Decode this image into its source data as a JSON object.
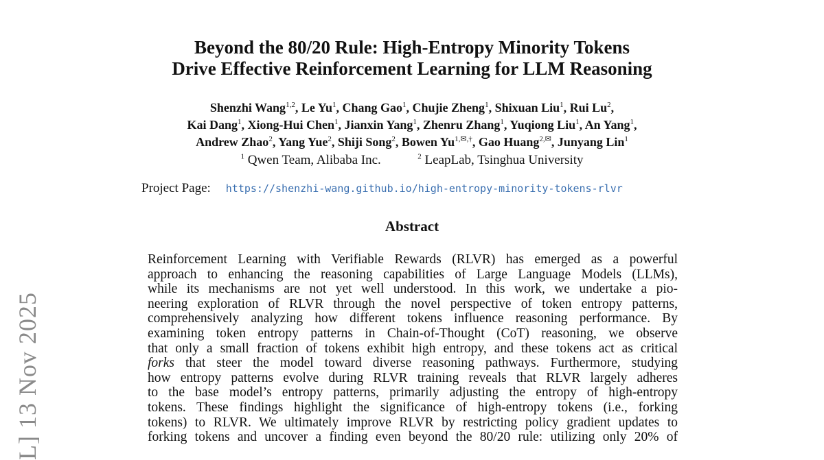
{
  "arxiv_stamp": "L]   13 Nov 2025",
  "title": [
    "Beyond the 80/20 Rule: High-Entropy Minority Tokens",
    "Drive Effective Reinforcement Learning for LLM Reasoning"
  ],
  "authors": [
    [
      [
        "Shenzhi Wang",
        "1,2"
      ],
      [
        "Le Yu",
        "1"
      ],
      [
        "Chang Gao",
        "1"
      ],
      [
        "Chujie Zheng",
        "1"
      ],
      [
        "Shixuan Liu",
        "1"
      ],
      [
        "Rui Lu",
        "2"
      ]
    ],
    [
      [
        "Kai Dang",
        "1"
      ],
      [
        "Xiong-Hui Chen",
        "1"
      ],
      [
        "Jianxin Yang",
        "1"
      ],
      [
        "Zhenru Zhang",
        "1"
      ],
      [
        "Yuqiong Liu",
        "1"
      ],
      [
        "An Yang",
        "1"
      ]
    ],
    [
      [
        "Andrew Zhao",
        "2"
      ],
      [
        "Yang Yue",
        "2"
      ],
      [
        "Shiji Song",
        "2"
      ],
      [
        "Bowen Yu",
        "1,✉,†"
      ],
      [
        "Gao Huang",
        "2,✉"
      ],
      [
        "Junyang Lin",
        "1"
      ]
    ]
  ],
  "affiliations": [
    [
      "1",
      "Qwen Team, Alibaba Inc."
    ],
    [
      "2",
      "LeapLab, Tsinghua University"
    ]
  ],
  "project_page": {
    "label": "Project Page:",
    "url": "https://shenzhi-wang.github.io/high-entropy-minority-tokens-rlvr",
    "link_color": "#3a6fb0"
  },
  "abstract_heading": "Abstract",
  "abstract_lines": [
    "Reinforcement Learning with Verifiable Rewards (RLVR) has emerged as a powerful",
    "approach to enhancing the reasoning capabilities of Large Language Models (LLMs),",
    "while its mechanisms are not yet well understood. In this work, we undertake a pio-",
    "neering exploration of RLVR through the novel perspective of token entropy patterns,",
    "comprehensively analyzing how different tokens influence reasoning performance. By",
    "examining token entropy patterns in Chain-of-Thought (CoT) reasoning, we observe",
    "that only a small fraction of tokens exhibit high entropy, and these tokens act as critical",
    "",
    "how entropy patterns evolve during RLVR training reveals that RLVR largely adheres",
    "to the base model’s entropy patterns, primarily adjusting the entropy of high-entropy",
    "tokens. These findings highlight the significance of high-entropy tokens (i.e., forking",
    "tokens) to RLVR. We ultimately improve RLVR by restricting policy gradient updates to",
    "forking tokens and uncover a finding even beyond the 80/20 rule: utilizing only 20% of"
  ],
  "abstract_line8": {
    "italic": "forks",
    "rest": " that steer the model toward diverse reasoning pathways. Furthermore, studying"
  }
}
